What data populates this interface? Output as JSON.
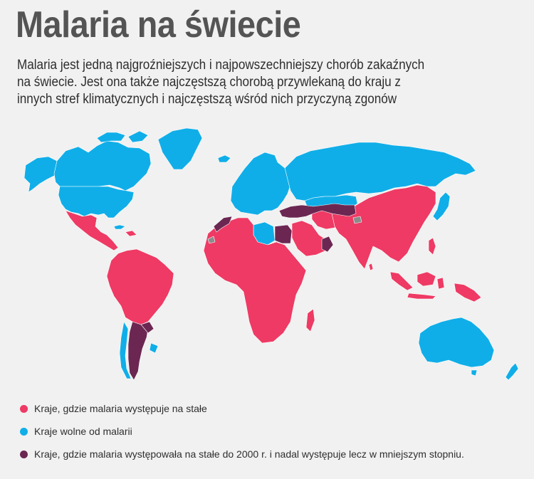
{
  "title": "Malaria na świecie",
  "subtitle_lines": [
    "Malaria jest jedną najgroźniejszych i najpowszechniejszy chorób zakaźnych",
    "na świecie. Jest ona także najczęstszą chorobą przywlekaną do kraju z",
    "innych stref klimatycznych i najczęstszą wśród nich przyczyną zgonów"
  ],
  "colors": {
    "endemic": "#ee3a64",
    "free": "#10aee8",
    "reduced": "#6b2752",
    "no_data": "#8c8c8c",
    "background": "#f1f1f1"
  },
  "legend": [
    {
      "key": "endemic",
      "label": "Kraje, gdzie malaria występuje na stałe"
    },
    {
      "key": "free",
      "label": "Kraje wolne od malarii"
    },
    {
      "key": "reduced",
      "label": "Kraje, gdzie malaria występowała na stałe do 2000 r. i nadal występuje lecz w mniejszym stopniu."
    }
  ]
}
